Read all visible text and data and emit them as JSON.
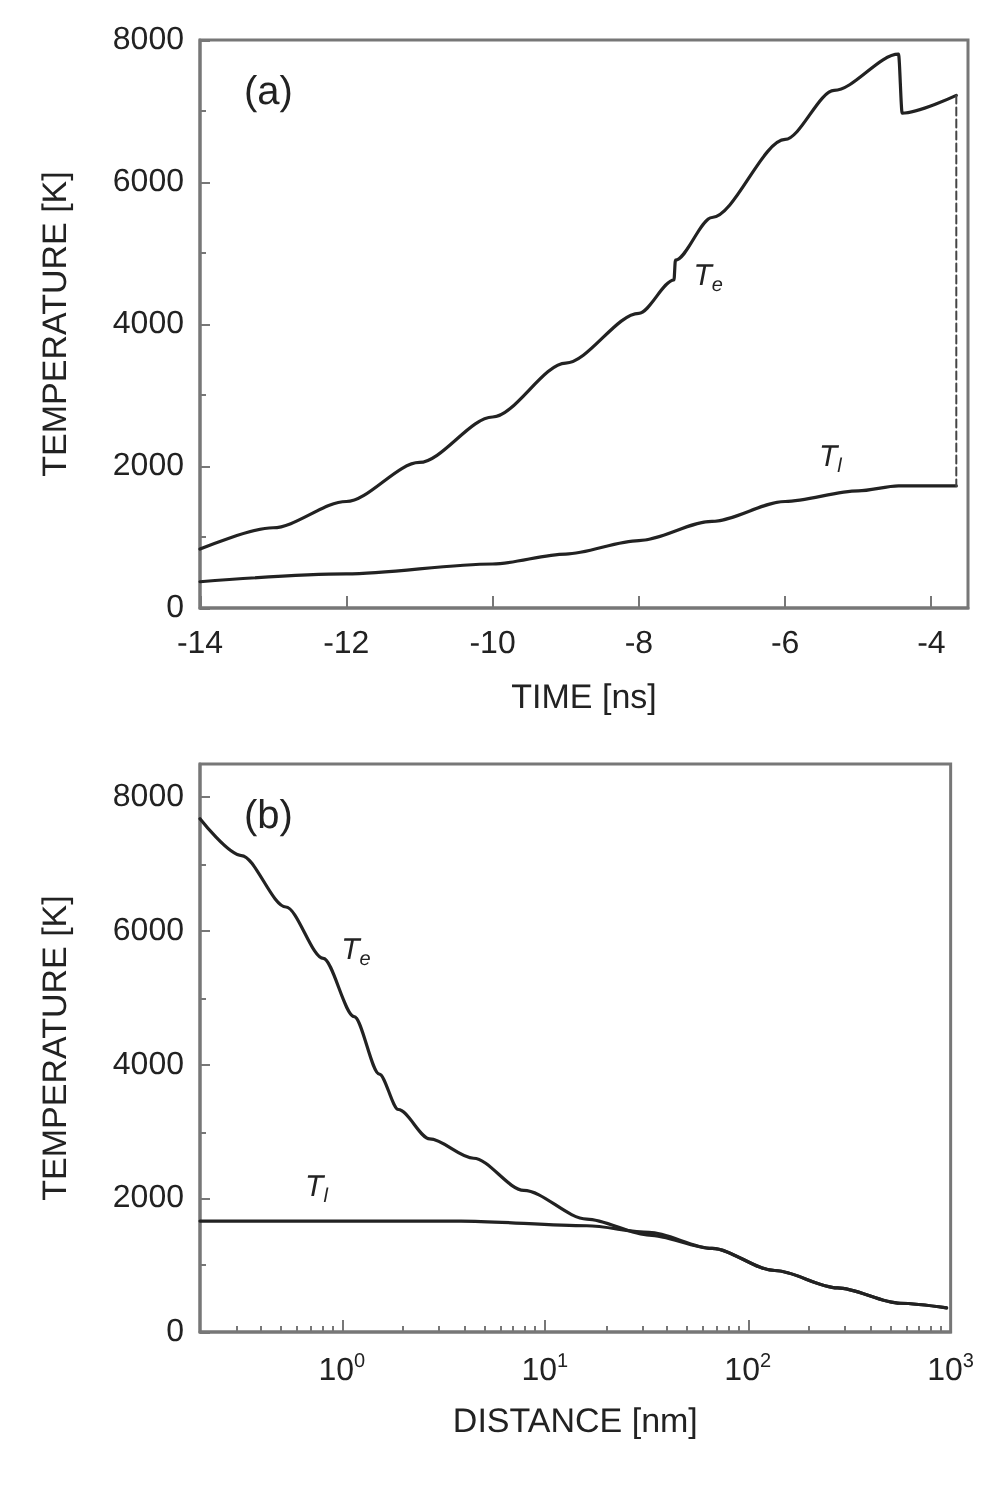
{
  "chart_data": [
    {
      "type": "line",
      "xlabel": "TIME [ns]",
      "ylabel": "TEMPERATURE [K]",
      "xlim": [
        -14,
        -3.5
      ],
      "xticks": [
        -14,
        -12,
        -10,
        -8,
        -6,
        -4
      ],
      "ylim": [
        0,
        8000
      ],
      "yticks": [
        0,
        2000,
        4000,
        6000,
        8000
      ],
      "grid": false,
      "marker": "none",
      "annotations": [
        "(a)"
      ],
      "series": [
        {
          "name": "T$_{e}$",
          "color": "#222222",
          "x": [
            -14,
            -13,
            -12,
            -11,
            -10,
            -9,
            -8,
            -7.52,
            -7.5,
            -7,
            -6,
            -5.33,
            -4.45,
            -4.4,
            -3.66
          ],
          "values": [
            830,
            1130,
            1500,
            2050,
            2690,
            3450,
            4150,
            4620,
            4900,
            5500,
            6600,
            7290,
            7800,
            6970,
            7220
          ]
        },
        {
          "name": "T$_{l}$",
          "color": "#222222",
          "x": [
            -14,
            -12,
            -10,
            -9,
            -8,
            -7,
            -6,
            -5,
            -4.45,
            -3.66
          ],
          "values": [
            370,
            480,
            620,
            760,
            950,
            1220,
            1500,
            1650,
            1720,
            1720
          ]
        },
        {
          "color": "#444444",
          "line_style": "dashed",
          "x": [
            -3.66,
            -3.66
          ],
          "values": [
            7220,
            1720
          ]
        }
      ]
    },
    {
      "type": "line",
      "xlabel": "DISTANCE [nm]",
      "ylabel": "TEMPERATURE [K]",
      "log": "x",
      "xlim": [
        0.2,
        1000
      ],
      "xticks": [
        {
          "value": 1,
          "label": "10$^{0}$"
        },
        {
          "value": 10,
          "label": "10$^{1}$"
        },
        {
          "value": 100,
          "label": "10$^{2}$"
        },
        {
          "value": 1000,
          "label": "10$^{3}$"
        }
      ],
      "ylim": [
        0,
        8500
      ],
      "yticks": [
        0,
        2000,
        4000,
        6000,
        8000
      ],
      "grid": false,
      "marker": "none",
      "annotations": [
        "(b)"
      ],
      "series": [
        {
          "name": "T$_{e}$",
          "color": "#222222",
          "x": [
            0.2,
            0.32,
            0.53,
            0.81,
            1.15,
            1.53,
            1.9,
            2.71,
            4.46,
            7.88,
            16.1,
            32.7,
            66.7,
            136,
            277,
            564,
            955
          ],
          "values": [
            7680,
            7130,
            6360,
            5590,
            4720,
            3860,
            3330,
            2890,
            2600,
            2120,
            1690,
            1450,
            1250,
            920,
            660,
            430,
            360
          ]
        },
        {
          "name": "T$_{l}$",
          "color": "#222222",
          "x": [
            0.2,
            0.75,
            3.86,
            16.1,
            32.7,
            66.7,
            136,
            277,
            564,
            955
          ],
          "values": [
            1660,
            1660,
            1660,
            1590,
            1490,
            1250,
            920,
            660,
            430,
            360
          ]
        }
      ]
    }
  ]
}
